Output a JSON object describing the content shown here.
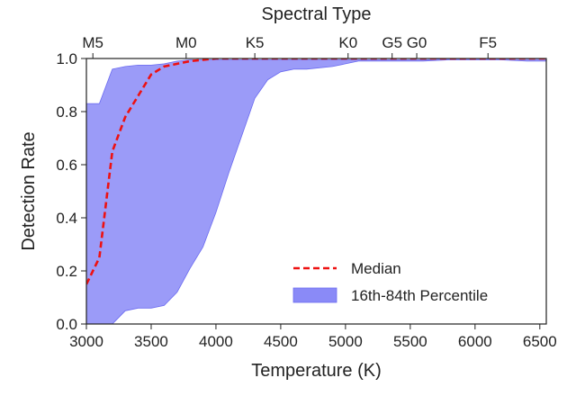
{
  "chart_data": {
    "type": "area",
    "xlabel": "Temperature (K)",
    "ylabel": "Detection Rate",
    "top_axis_label": "Spectral Type",
    "xlim": [
      3000,
      6550
    ],
    "ylim": [
      0.0,
      1.0
    ],
    "xticks": [
      3000,
      3500,
      4000,
      4500,
      5000,
      5500,
      6000,
      6500
    ],
    "yticks": [
      0.0,
      0.2,
      0.4,
      0.6,
      0.8,
      1.0
    ],
    "xtick_labels": [
      "3000",
      "3500",
      "4000",
      "4500",
      "5000",
      "5500",
      "6000",
      "6500"
    ],
    "ytick_labels": [
      "0.0",
      "0.2",
      "0.4",
      "0.6",
      "0.8",
      "1.0"
    ],
    "top_ticks": [
      {
        "label": "M5",
        "x": 3050
      },
      {
        "label": "M0",
        "x": 3770
      },
      {
        "label": "K5",
        "x": 4300
      },
      {
        "label": "K0",
        "x": 5020
      },
      {
        "label": "G5",
        "x": 5360
      },
      {
        "label": "G0",
        "x": 5550
      },
      {
        "label": "F5",
        "x": 6100
      }
    ],
    "grid": false,
    "legend_position": "lower-right",
    "series": [
      {
        "name": "Median",
        "kind": "line",
        "style": "dashed",
        "color": "#ee1111",
        "x": [
          3000,
          3100,
          3200,
          3300,
          3400,
          3500,
          3600,
          3700,
          3800,
          3900,
          4000,
          4500,
          5000,
          5500,
          6000,
          6500,
          6550
        ],
        "y": [
          0.15,
          0.25,
          0.65,
          0.78,
          0.86,
          0.94,
          0.97,
          0.98,
          0.99,
          0.995,
          1.0,
          1.0,
          1.0,
          1.0,
          1.0,
          1.0,
          1.0
        ]
      },
      {
        "name": "16th-84th Percentile",
        "kind": "band",
        "color": "#8a8af7",
        "x": [
          3000,
          3100,
          3200,
          3300,
          3400,
          3500,
          3600,
          3700,
          3800,
          3900,
          4000,
          4100,
          4200,
          4300,
          4400,
          4500,
          4600,
          4700,
          4800,
          4900,
          5000,
          5100,
          5200,
          5400,
          5600,
          5800,
          6000,
          6200,
          6400,
          6550
        ],
        "upper": [
          0.83,
          0.83,
          0.96,
          0.97,
          0.975,
          0.975,
          0.98,
          0.99,
          0.995,
          0.995,
          0.995,
          0.995,
          0.995,
          0.995,
          0.995,
          0.995,
          0.995,
          0.995,
          0.995,
          0.995,
          0.995,
          0.995,
          0.995,
          0.995,
          0.995,
          1.0,
          1.0,
          1.0,
          1.0,
          1.0
        ],
        "lower": [
          0.0,
          0.0,
          0.0,
          0.05,
          0.06,
          0.06,
          0.07,
          0.12,
          0.21,
          0.29,
          0.42,
          0.57,
          0.71,
          0.85,
          0.92,
          0.95,
          0.96,
          0.96,
          0.965,
          0.97,
          0.98,
          0.99,
          0.99,
          0.99,
          0.99,
          0.995,
          0.995,
          0.995,
          0.99,
          0.99
        ]
      }
    ]
  }
}
